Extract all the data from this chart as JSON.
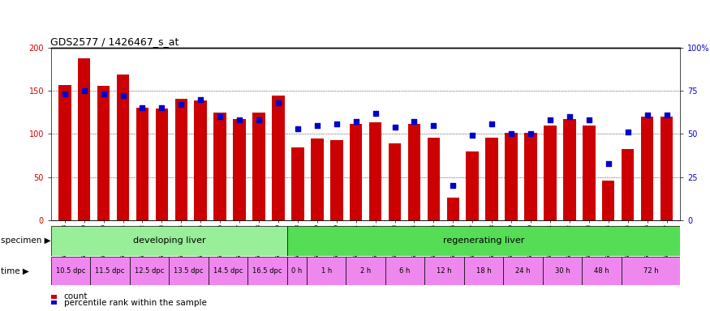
{
  "title": "GDS2577 / 1426467_s_at",
  "samples": [
    "GSM161128",
    "GSM161129",
    "GSM161130",
    "GSM161131",
    "GSM161132",
    "GSM161133",
    "GSM161134",
    "GSM161135",
    "GSM161136",
    "GSM161137",
    "GSM161138",
    "GSM161139",
    "GSM161108",
    "GSM161109",
    "GSM161110",
    "GSM161111",
    "GSM161112",
    "GSM161113",
    "GSM161114",
    "GSM161115",
    "GSM161116",
    "GSM161117",
    "GSM161118",
    "GSM161119",
    "GSM161120",
    "GSM161121",
    "GSM161122",
    "GSM161123",
    "GSM161124",
    "GSM161125",
    "GSM161126",
    "GSM161127"
  ],
  "counts": [
    157,
    188,
    156,
    169,
    130,
    129,
    141,
    139,
    125,
    117,
    125,
    144,
    84,
    95,
    93,
    112,
    113,
    89,
    112,
    96,
    26,
    80,
    96,
    101,
    101,
    110,
    117,
    110,
    46,
    82,
    120,
    120
  ],
  "percentiles": [
    73,
    75,
    73,
    72,
    65,
    65,
    67,
    70,
    60,
    58,
    58,
    68,
    53,
    55,
    56,
    57,
    62,
    54,
    57,
    55,
    20,
    49,
    56,
    50,
    50,
    58,
    60,
    58,
    33,
    51,
    61,
    61
  ],
  "bar_color": "#cc0000",
  "dot_color": "#0000cc",
  "ylim_left": [
    0,
    200
  ],
  "ylim_right": [
    0,
    100
  ],
  "yticks_left": [
    0,
    50,
    100,
    150,
    200
  ],
  "yticks_right": [
    0,
    25,
    50,
    75,
    100
  ],
  "ytick_labels_right": [
    "0",
    "25",
    "50",
    "75",
    "100%"
  ],
  "specimen_groups": [
    {
      "label": "developing liver",
      "color": "#99ee99",
      "start": 0,
      "end": 12
    },
    {
      "label": "regenerating liver",
      "color": "#55dd55",
      "start": 12,
      "end": 32
    }
  ],
  "time_groups": [
    {
      "label": "10.5 dpc",
      "color": "#ee88ee",
      "start": 0,
      "end": 2
    },
    {
      "label": "11.5 dpc",
      "color": "#ee88ee",
      "start": 2,
      "end": 4
    },
    {
      "label": "12.5 dpc",
      "color": "#ee88ee",
      "start": 4,
      "end": 6
    },
    {
      "label": "13.5 dpc",
      "color": "#ee88ee",
      "start": 6,
      "end": 8
    },
    {
      "label": "14.5 dpc",
      "color": "#ee88ee",
      "start": 8,
      "end": 10
    },
    {
      "label": "16.5 dpc",
      "color": "#ee88ee",
      "start": 10,
      "end": 12
    },
    {
      "label": "0 h",
      "color": "#ee88ee",
      "start": 12,
      "end": 13
    },
    {
      "label": "1 h",
      "color": "#ee88ee",
      "start": 13,
      "end": 15
    },
    {
      "label": "2 h",
      "color": "#ee88ee",
      "start": 15,
      "end": 17
    },
    {
      "label": "6 h",
      "color": "#ee88ee",
      "start": 17,
      "end": 19
    },
    {
      "label": "12 h",
      "color": "#ee88ee",
      "start": 19,
      "end": 21
    },
    {
      "label": "18 h",
      "color": "#ee88ee",
      "start": 21,
      "end": 23
    },
    {
      "label": "24 h",
      "color": "#ee88ee",
      "start": 23,
      "end": 25
    },
    {
      "label": "30 h",
      "color": "#ee88ee",
      "start": 25,
      "end": 27
    },
    {
      "label": "48 h",
      "color": "#ee88ee",
      "start": 27,
      "end": 29
    },
    {
      "label": "72 h",
      "color": "#ee88ee",
      "start": 29,
      "end": 32
    }
  ],
  "legend_count_color": "#cc0000",
  "legend_dot_color": "#0000cc",
  "background_color": "#ffffff"
}
